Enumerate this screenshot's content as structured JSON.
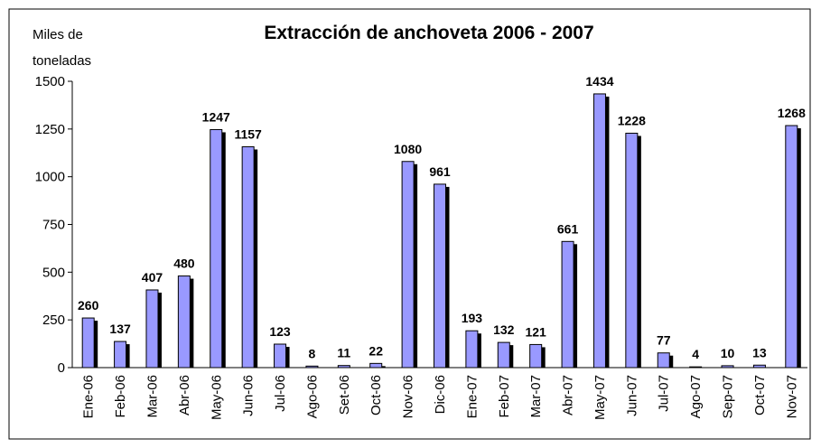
{
  "chart_data": {
    "type": "bar",
    "title": "Extracción de anchoveta 2006 - 2007",
    "ylabel": [
      "Miles de",
      "toneladas"
    ],
    "categories": [
      "Ene-06",
      "Feb-06",
      "Mar-06",
      "Abr-06",
      "May-06",
      "Jun-06",
      "Jul-06",
      "Ago-06",
      "Set-06",
      "Oct-06",
      "Nov-06",
      "Dic-06",
      "Ene-07",
      "Feb-07",
      "Mar-07",
      "Abr-07",
      "May-07",
      "Jun-07",
      "Jul-07",
      "Ago-07",
      "Sep-07",
      "Oct-07",
      "Nov-07"
    ],
    "values": [
      260,
      137,
      407,
      480,
      1247,
      1157,
      123,
      8,
      11,
      22,
      1080,
      961,
      193,
      132,
      121,
      661,
      1434,
      1228,
      77,
      4,
      10,
      13,
      1268
    ],
    "color": "#9999ff",
    "shadow_color": "#000000",
    "ylim": [
      0,
      1500
    ],
    "yticks": [
      0,
      250,
      500,
      750,
      1000,
      1250,
      1500
    ]
  }
}
